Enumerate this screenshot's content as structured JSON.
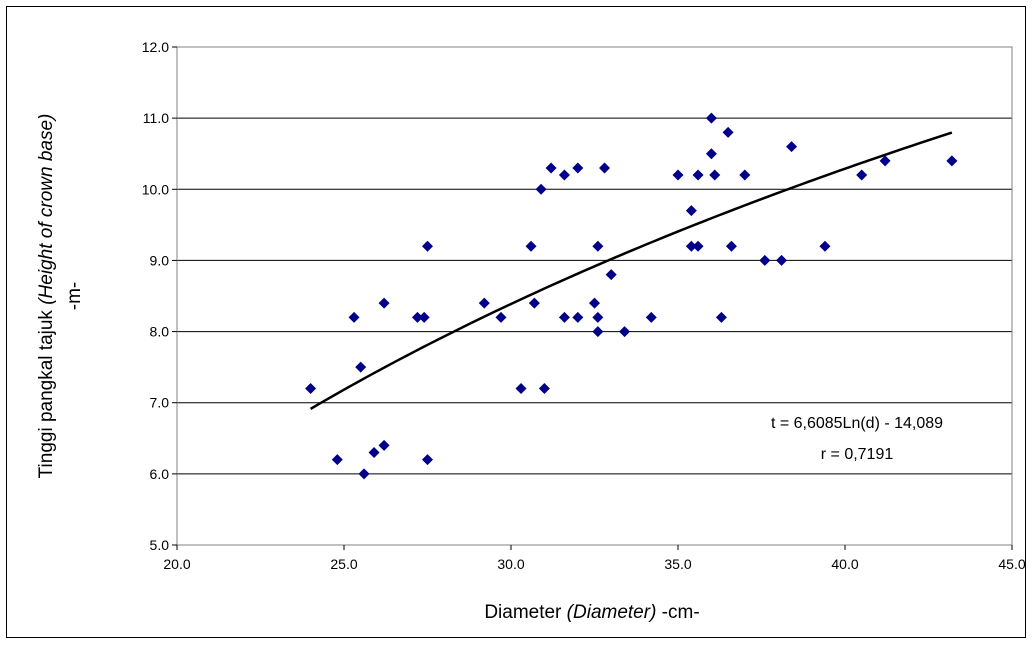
{
  "chart_data": {
    "type": "scatter",
    "xlabel": {
      "main": "Diameter ",
      "italic": "(Diameter)",
      "unit": " -cm-"
    },
    "ylabel": {
      "main": "Tinggi pangkal tajuk  ",
      "italic": "(Height of crown base)",
      "unit": "-m-"
    },
    "xlim": [
      20.0,
      45.0
    ],
    "ylim": [
      5.0,
      12.0
    ],
    "x_ticks": [
      "20.0",
      "25.0",
      "30.0",
      "35.0",
      "40.0",
      "45.0"
    ],
    "y_ticks": [
      "5.0",
      "6.0",
      "7.0",
      "8.0",
      "9.0",
      "10.0",
      "11.0",
      "12.0"
    ],
    "grid": "horizontal",
    "marker_color": "#00008B",
    "trend_color": "#000000",
    "trendline": {
      "type": "logarithmic",
      "a": 6.6085,
      "b": -14.089,
      "x_range": [
        24.0,
        43.2
      ]
    },
    "annotations": [
      "t = 6,6085Ln(d) - 14,089",
      "r = 0,7191"
    ],
    "points": [
      [
        24.0,
        7.2
      ],
      [
        24.8,
        6.2
      ],
      [
        25.3,
        8.2
      ],
      [
        25.5,
        7.5
      ],
      [
        25.6,
        6.0
      ],
      [
        25.9,
        6.3
      ],
      [
        26.2,
        6.4
      ],
      [
        26.2,
        8.4
      ],
      [
        27.2,
        8.2
      ],
      [
        27.4,
        8.2
      ],
      [
        27.5,
        9.2
      ],
      [
        27.5,
        6.2
      ],
      [
        29.2,
        8.4
      ],
      [
        29.7,
        8.2
      ],
      [
        30.3,
        7.2
      ],
      [
        30.6,
        9.2
      ],
      [
        30.7,
        8.4
      ],
      [
        30.9,
        10.0
      ],
      [
        31.0,
        7.2
      ],
      [
        31.2,
        10.3
      ],
      [
        31.6,
        10.2
      ],
      [
        31.6,
        8.2
      ],
      [
        32.0,
        10.3
      ],
      [
        32.0,
        8.2
      ],
      [
        32.5,
        8.4
      ],
      [
        32.6,
        9.2
      ],
      [
        32.6,
        8.2
      ],
      [
        32.6,
        8.0
      ],
      [
        32.8,
        10.3
      ],
      [
        33.0,
        8.8
      ],
      [
        33.4,
        8.0
      ],
      [
        34.2,
        8.2
      ],
      [
        35.0,
        10.2
      ],
      [
        35.4,
        9.7
      ],
      [
        35.4,
        9.2
      ],
      [
        35.6,
        10.2
      ],
      [
        35.6,
        9.2
      ],
      [
        36.0,
        11.0
      ],
      [
        36.0,
        10.5
      ],
      [
        36.1,
        10.2
      ],
      [
        36.3,
        8.2
      ],
      [
        36.5,
        10.8
      ],
      [
        36.6,
        9.2
      ],
      [
        37.0,
        10.2
      ],
      [
        37.6,
        9.0
      ],
      [
        38.1,
        9.0
      ],
      [
        38.4,
        10.6
      ],
      [
        39.4,
        9.2
      ],
      [
        40.5,
        10.2
      ],
      [
        41.2,
        10.4
      ],
      [
        43.2,
        10.4
      ]
    ]
  }
}
